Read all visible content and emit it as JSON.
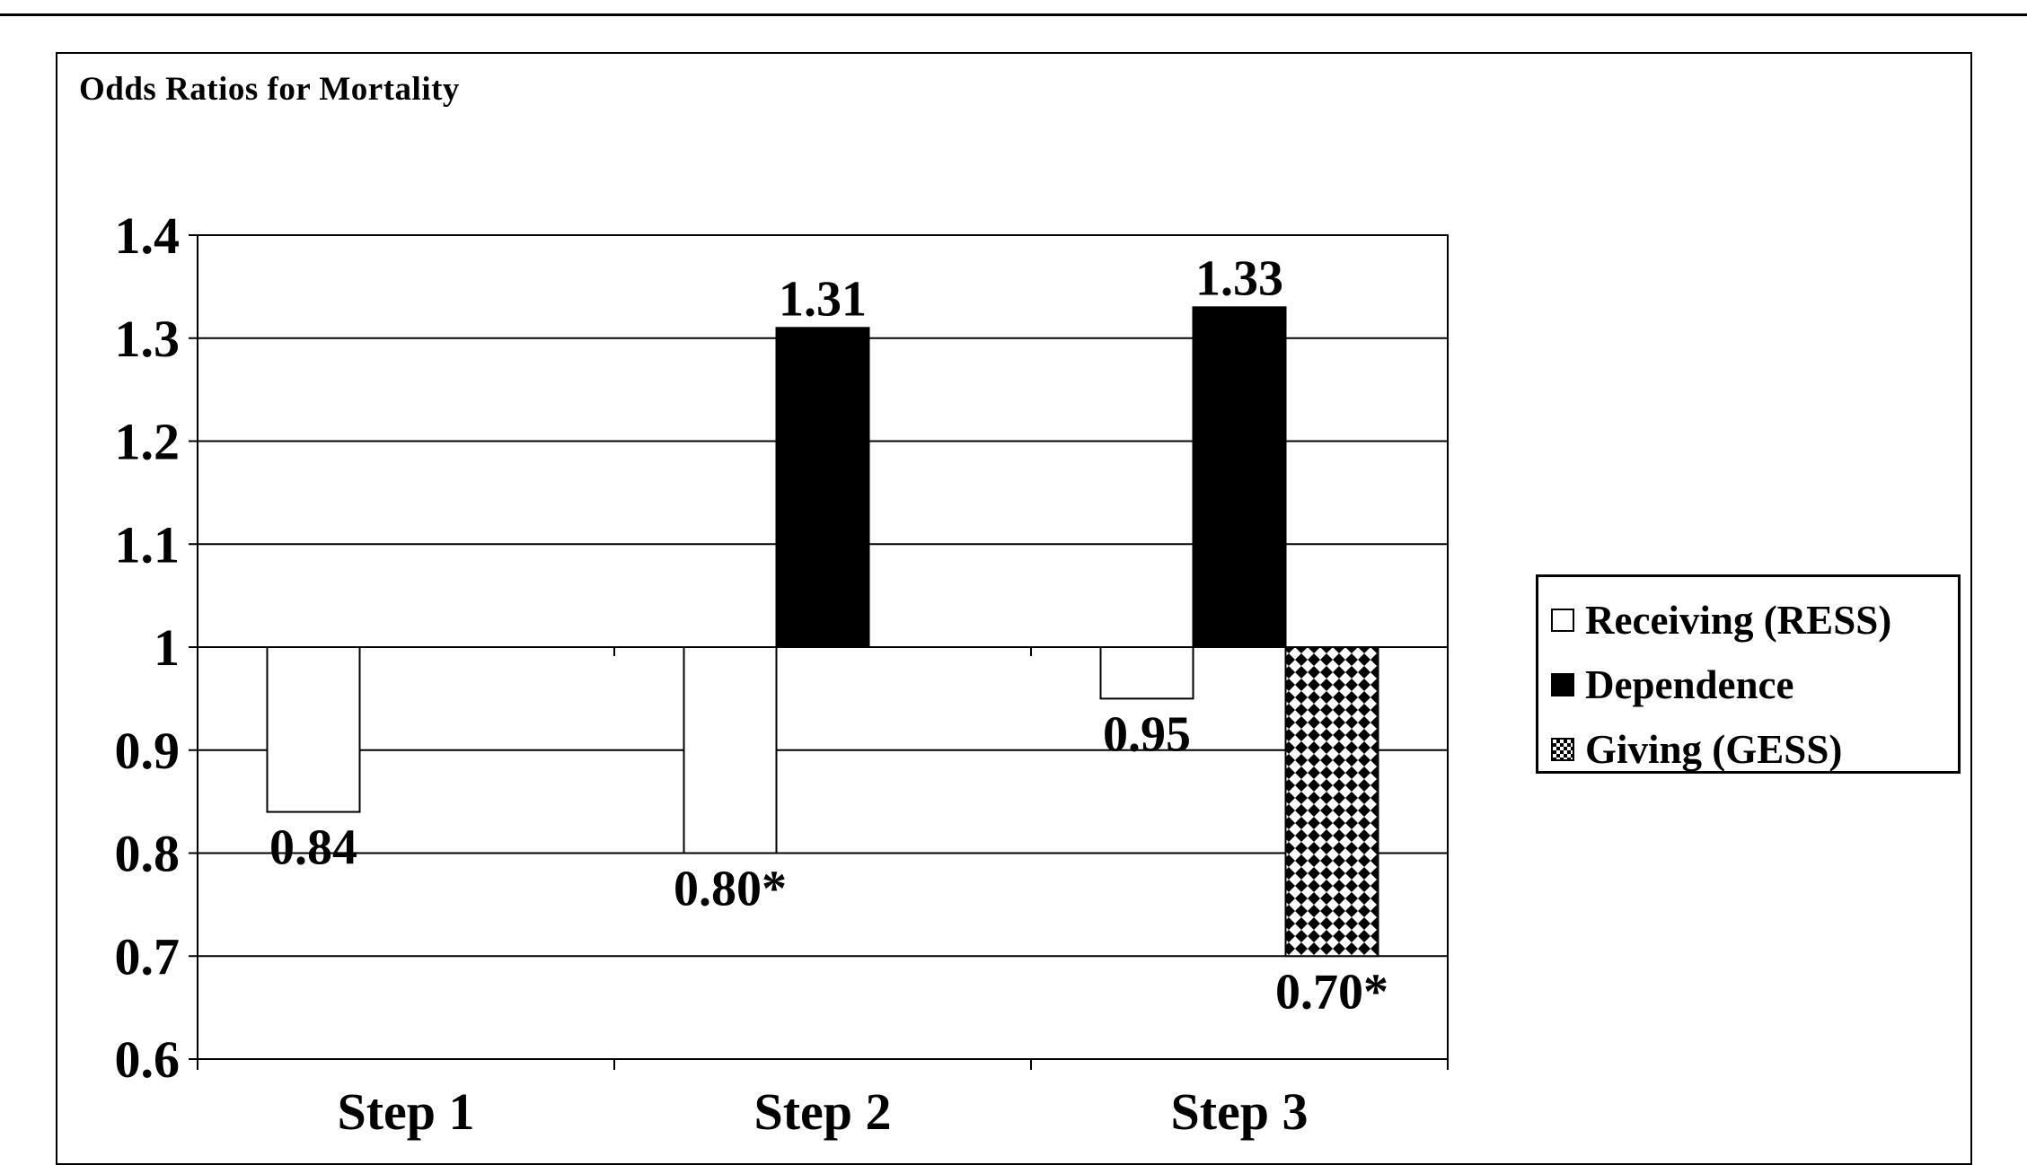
{
  "chart_data": {
    "type": "bar",
    "title": "Odds Ratios for Mortality",
    "xlabel": "",
    "ylabel": "",
    "baseline": 1,
    "ylim": [
      0.6,
      1.4
    ],
    "yticks": [
      "0.6",
      "0.7",
      "0.8",
      "0.9",
      "1",
      "1.1",
      "1.2",
      "1.3",
      "1.4"
    ],
    "categories": [
      "Step 1",
      "Step 2",
      "Step 3"
    ],
    "grid": true,
    "legend_position": "right",
    "series": [
      {
        "name": "Receiving (RESS)",
        "color": "#ffffff",
        "fill": "white",
        "values": [
          0.84,
          0.8,
          0.95
        ],
        "labels": [
          "0.84",
          "0.80*",
          "0.95"
        ]
      },
      {
        "name": "Dependence",
        "color": "#000000",
        "fill": "black",
        "values": [
          null,
          1.31,
          1.33
        ],
        "labels": [
          "",
          "1.31",
          "1.33"
        ]
      },
      {
        "name": "Giving (GESS)",
        "color": "#000000",
        "fill": "checker",
        "values": [
          null,
          null,
          0.7
        ],
        "labels": [
          "",
          "",
          "0.70*"
        ]
      }
    ]
  }
}
